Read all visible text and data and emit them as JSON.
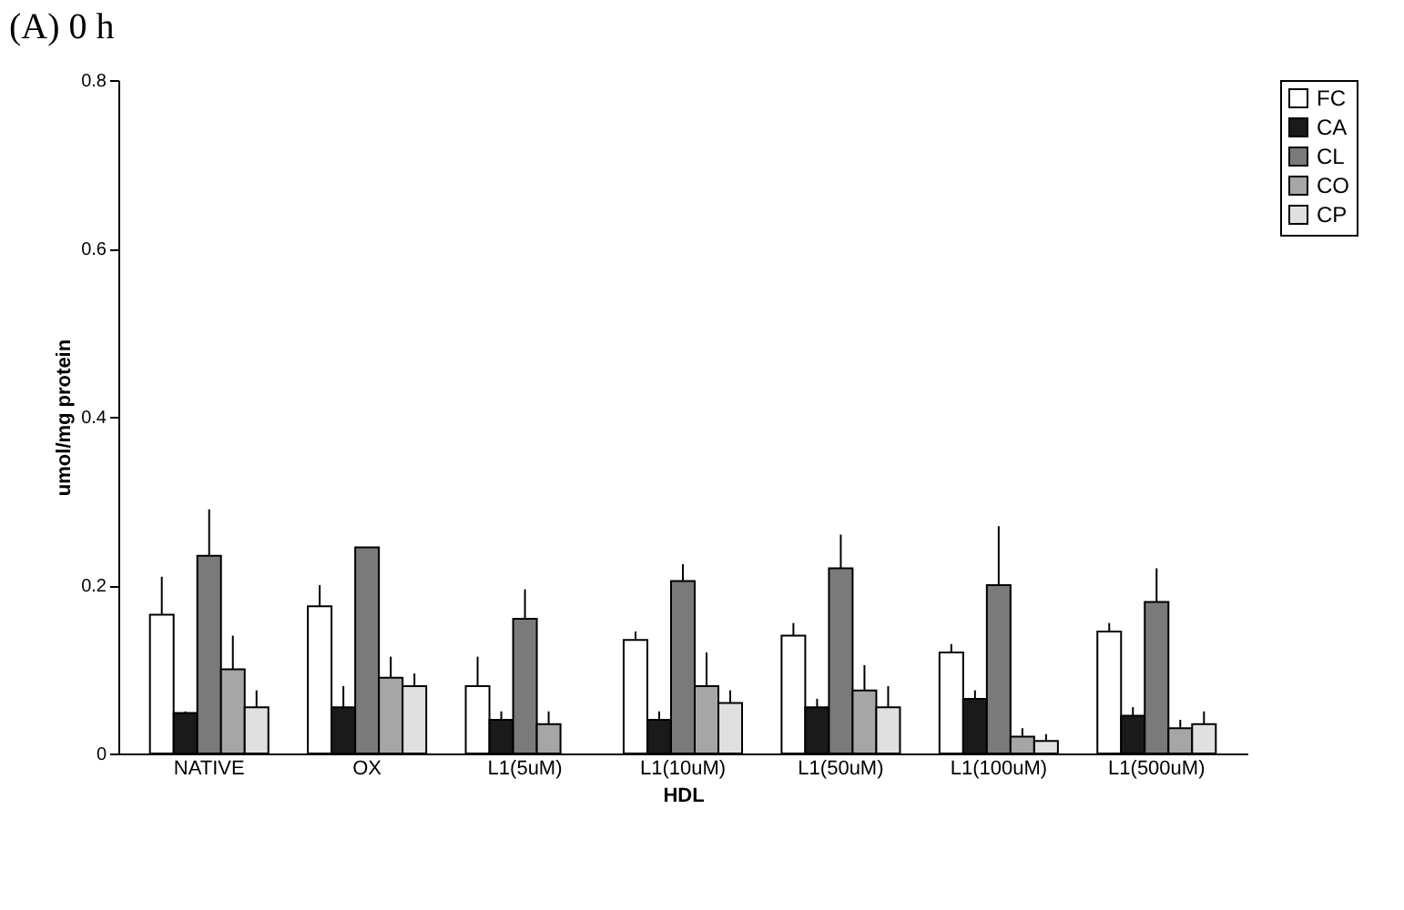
{
  "chart_data": {
    "type": "bar",
    "title": "(A) 0 h",
    "xlabel": "HDL",
    "ylabel": "umol/mg protein",
    "categories": [
      "NATIVE",
      "OX",
      "L1(5uM)",
      "L1(10uM)",
      "L1(50uM)",
      "L1(100uM)",
      "L1(500uM)"
    ],
    "series": [
      {
        "name": "FC",
        "color": "#ffffff",
        "values": [
          0.165,
          0.175,
          0.08,
          0.135,
          0.14,
          0.12,
          0.145
        ],
        "errors": [
          [
            0.165,
            0.21
          ],
          [
            0.175,
            0.2
          ],
          [
            0.08,
            0.115
          ],
          [
            0.135,
            0.145
          ],
          [
            0.14,
            0.155
          ],
          [
            0.12,
            0.13
          ],
          [
            0.145,
            0.155
          ]
        ]
      },
      {
        "name": "CA",
        "color": "#1a1a1a",
        "values": [
          0.048,
          0.055,
          0.04,
          0.04,
          0.055,
          0.065,
          0.045
        ],
        "errors": [
          [
            0.048,
            0.05
          ],
          [
            0.055,
            0.08
          ],
          [
            0.04,
            0.05
          ],
          [
            0.04,
            0.05
          ],
          [
            0.055,
            0.065
          ],
          [
            0.065,
            0.075
          ],
          [
            0.045,
            0.055
          ]
        ]
      },
      {
        "name": "CL",
        "color": "#7a7a7a",
        "values": [
          0.235,
          0.245,
          0.16,
          0.205,
          0.22,
          0.2,
          0.18
        ],
        "errors": [
          [
            0.235,
            0.29
          ],
          [
            0.245,
            0.245
          ],
          [
            0.16,
            0.195
          ],
          [
            0.205,
            0.225
          ],
          [
            0.22,
            0.26
          ],
          [
            0.2,
            0.27
          ],
          [
            0.18,
            0.22
          ]
        ]
      },
      {
        "name": "CO",
        "color": "#a6a6a6",
        "values": [
          0.1,
          0.09,
          0.035,
          0.08,
          0.075,
          0.02,
          0.03
        ],
        "errors": [
          [
            0.1,
            0.14
          ],
          [
            0.09,
            0.115
          ],
          [
            0.035,
            0.05
          ],
          [
            0.08,
            0.12
          ],
          [
            0.075,
            0.105
          ],
          [
            0.02,
            0.03
          ],
          [
            0.03,
            0.04
          ]
        ]
      },
      {
        "name": "CP",
        "color": "#e0e0e0",
        "values": [
          0.055,
          0.08,
          null,
          0.06,
          0.055,
          0.015,
          0.035
        ],
        "errors": [
          [
            0.055,
            0.075
          ],
          [
            0.08,
            0.095
          ],
          null,
          [
            0.06,
            0.075
          ],
          [
            0.055,
            0.08
          ],
          [
            0.015,
            0.023
          ],
          [
            0.035,
            0.05
          ]
        ]
      }
    ],
    "ylim": [
      0,
      0.8
    ],
    "yticks": [
      0,
      0.2,
      0.4,
      0.6,
      0.8
    ],
    "legend": "right",
    "grid": false
  }
}
